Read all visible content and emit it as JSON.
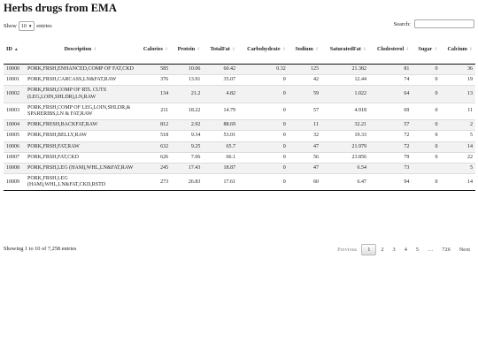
{
  "title": "Herbs drugs from EMA",
  "length_control": {
    "prefix": "Show",
    "value": "10",
    "suffix": "entries"
  },
  "search": {
    "label": "Search:",
    "value": ""
  },
  "columns": [
    "ID",
    "Description",
    "Calories",
    "Protein",
    "TotalFat",
    "Carbohydrate",
    "Sodium",
    "SaturatedFat",
    "Cholesterol",
    "Sugar",
    "Calcium"
  ],
  "rows": [
    [
      "10000",
      "PORK,FRSH,ENHANCED,COMP OF FAT,CKD",
      "585",
      "10.06",
      "60.42",
      "0.32",
      "125",
      "21.382",
      "81",
      "0",
      "36"
    ],
    [
      "10001",
      "PORK,FRSH,CARCASS,LN&FAT,RAW",
      "376",
      "13.91",
      "35.07",
      "0",
      "42",
      "12.44",
      "74",
      "0",
      "19"
    ],
    [
      "10002",
      "PORK,FRSH,COMP OF RTL CUTS (LEG,LOIN,SHLDR),LN,RAW",
      "134",
      "21.2",
      "4.82",
      "0",
      "59",
      "1.022",
      "64",
      "0",
      "13"
    ],
    [
      "10003",
      "PORK,FRSH,COMP OF LEG,LOIN,SHLDR,& SPARERIBS,LN & FAT,RAW",
      "211",
      "18.22",
      "14.79",
      "0",
      "57",
      "4.918",
      "69",
      "0",
      "11"
    ],
    [
      "10004",
      "PORK,FRESH,BACKFAT,RAW",
      "812",
      "2.92",
      "88.69",
      "0",
      "11",
      "32.21",
      "57",
      "0",
      "2"
    ],
    [
      "10005",
      "PORK,FRSH,BELLY,RAW",
      "518",
      "9.34",
      "53.01",
      "0",
      "32",
      "19.33",
      "72",
      "0",
      "5"
    ],
    [
      "10006",
      "PORK,FRSH,FAT,RAW",
      "632",
      "9.25",
      "65.7",
      "0",
      "47",
      "21.979",
      "72",
      "0",
      "14"
    ],
    [
      "10007",
      "PORK,FRSH,FAT,CKD",
      "626",
      "7.06",
      "66.1",
      "0",
      "56",
      "23.856",
      "79",
      "0",
      "22"
    ],
    [
      "10008",
      "PORK,FRSH,LEG (HAM),WHL,LN&FAT,RAW",
      "245",
      "17.43",
      "18.87",
      "0",
      "47",
      "6.54",
      "73",
      "",
      "5"
    ],
    [
      "10009",
      "PORK,FRSH,LEG (HAM),WHL,LN&FAT,CKD,RSTD",
      "273",
      "26.83",
      "17.61",
      "0",
      "60",
      "6.47",
      "94",
      "0",
      "14"
    ]
  ],
  "info": "Showing 1 to 10 of 7,258 entries",
  "pagination": {
    "previous": "Previous",
    "pages": [
      "1",
      "2",
      "3",
      "4",
      "5",
      "…",
      "726"
    ],
    "next": "Next",
    "current": "1"
  }
}
